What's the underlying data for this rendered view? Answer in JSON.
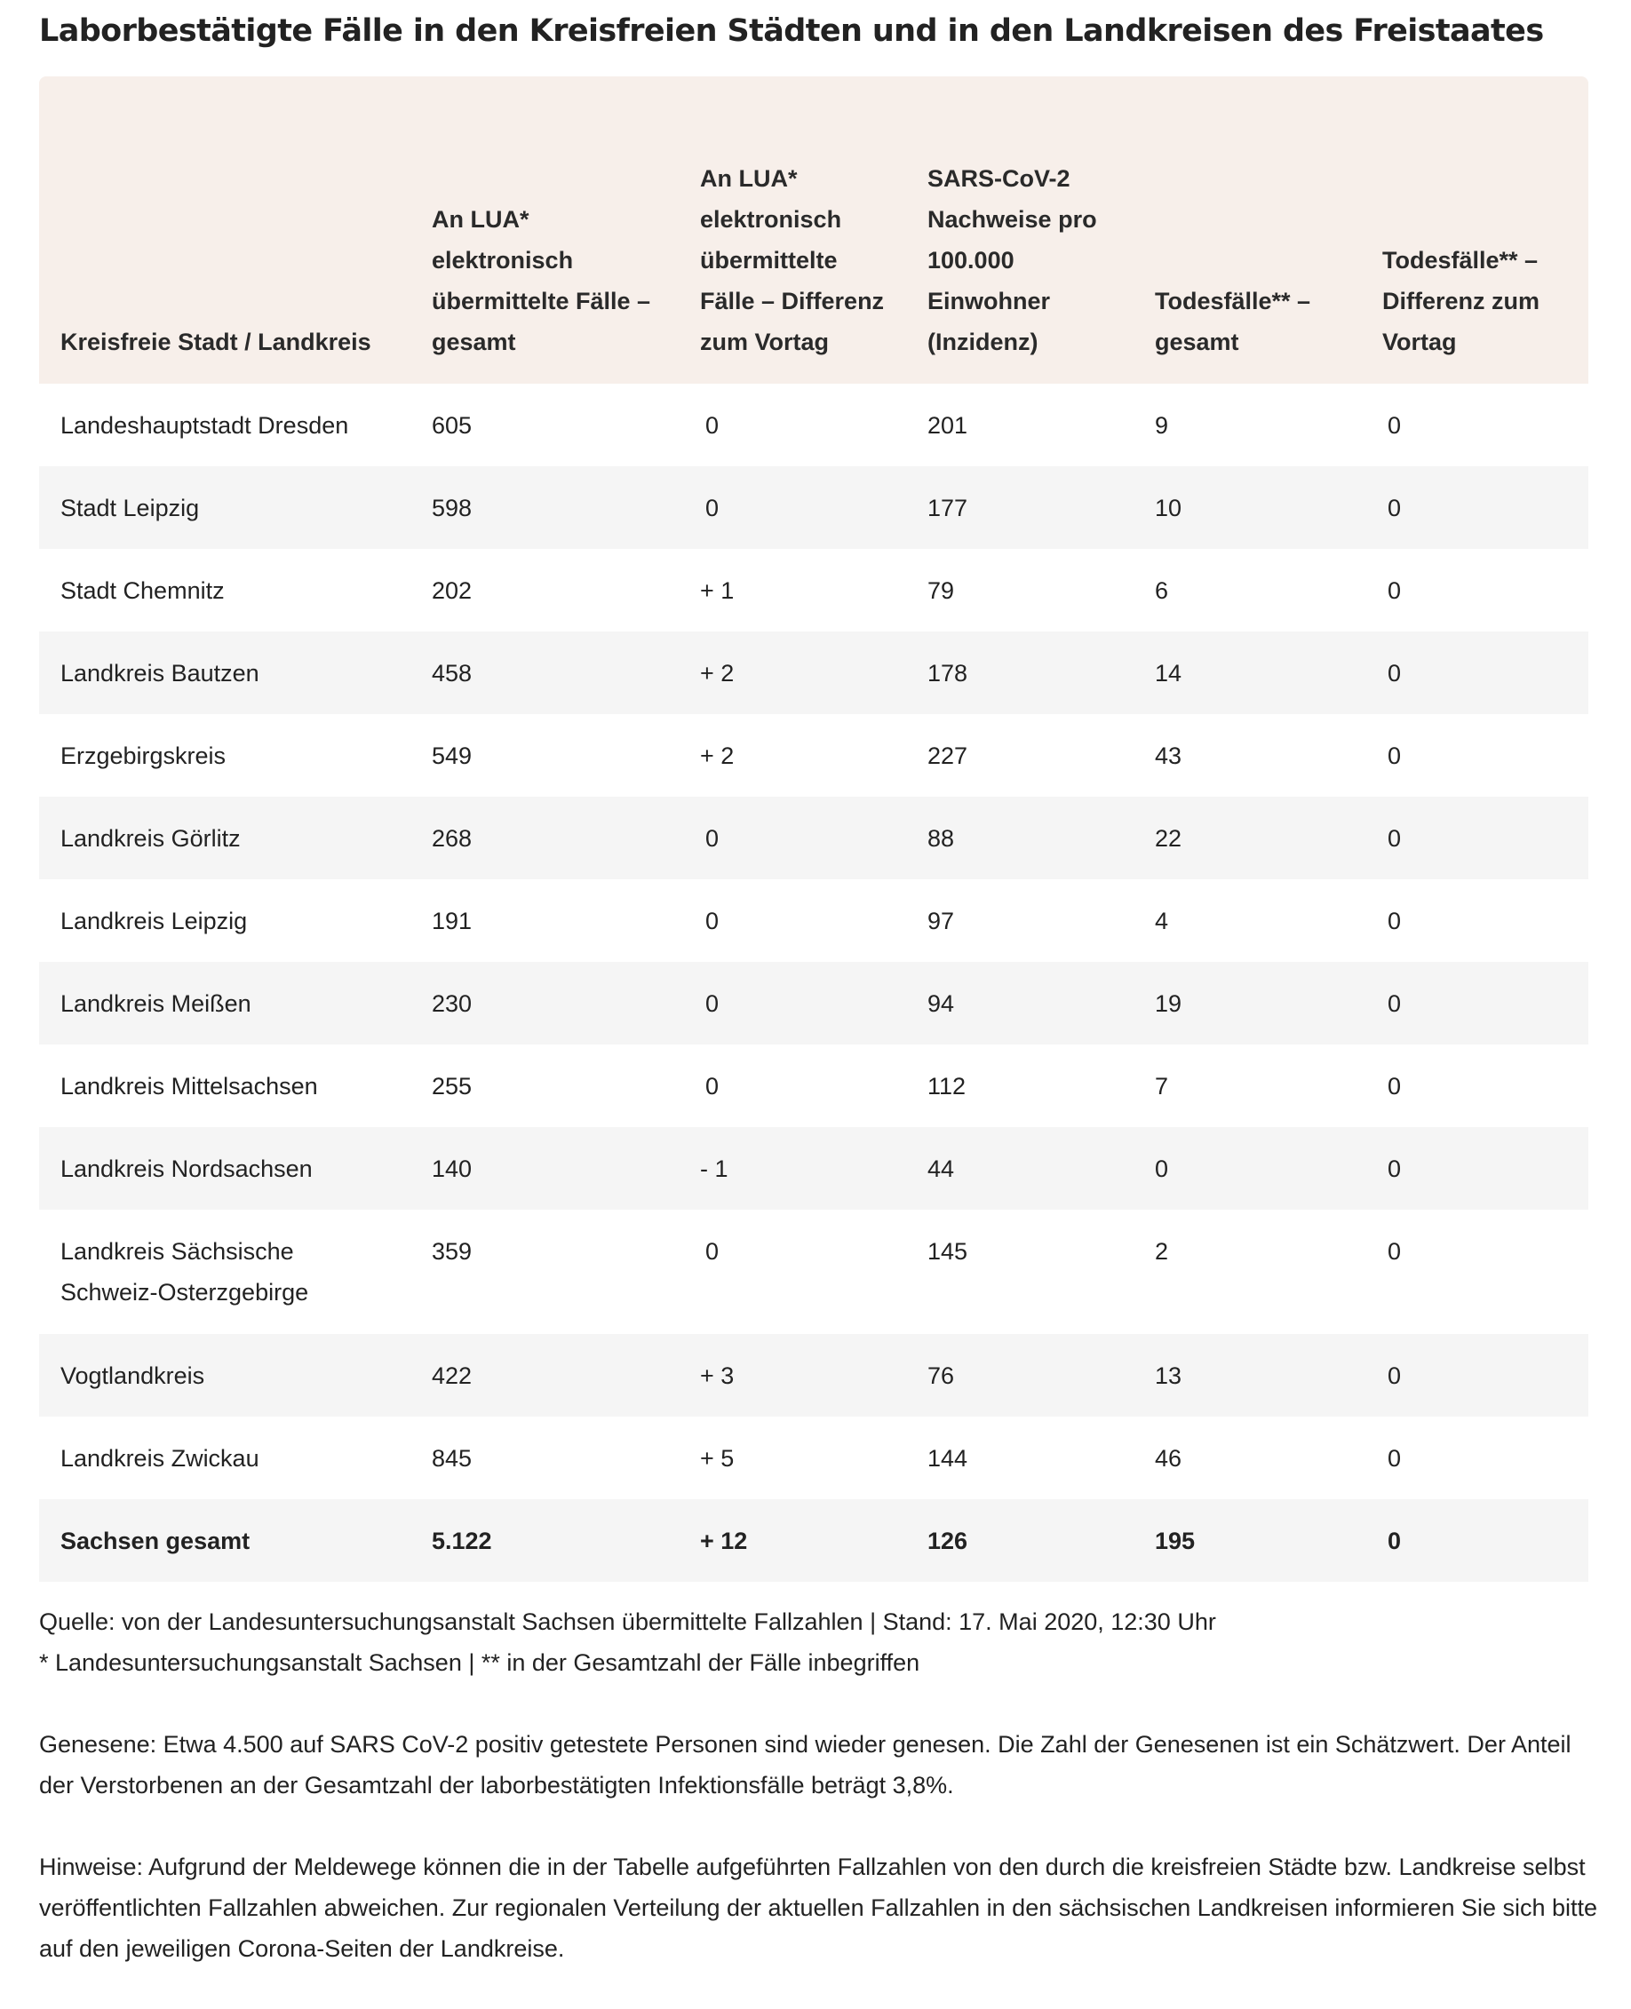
{
  "title": "Laborbestätigte Fälle in den Kreisfreien Städten und in den Landkreisen des Freistaates",
  "table": {
    "headers": [
      "Kreisfreie Stadt / Landkreis",
      "An LUA* elektronisch übermittelte Fälle – gesamt",
      "An LUA* elektronisch übermittelte Fälle – Differenz zum Vortag",
      "SARS-CoV-2 Nachweise pro 100.000 Einwohner (Inzidenz)",
      "Todesfälle** – gesamt",
      "Todesfälle** – Differenz zum Vortag"
    ],
    "rows": [
      [
        "Landeshauptstadt Dresden",
        "605",
        "0",
        "201",
        "9",
        "0"
      ],
      [
        "Stadt Leipzig",
        "598",
        "0",
        "177",
        "10",
        "0"
      ],
      [
        "Stadt Chemnitz",
        "202",
        "+ 1",
        "79",
        "6",
        "0"
      ],
      [
        "Landkreis Bautzen",
        "458",
        "+ 2",
        "178",
        "14",
        "0"
      ],
      [
        "Erzgebirgskreis",
        "549",
        "+ 2",
        "227",
        "43",
        "0"
      ],
      [
        "Landkreis Görlitz",
        "268",
        "0",
        "88",
        "22",
        "0"
      ],
      [
        "Landkreis Leipzig",
        "191",
        "0",
        "97",
        "4",
        "0"
      ],
      [
        "Landkreis Meißen",
        "230",
        "0",
        "94",
        "19",
        "0"
      ],
      [
        "Landkreis Mittelsachsen",
        "255",
        "0",
        "112",
        "7",
        "0"
      ],
      [
        "Landkreis Nordsachsen",
        "140",
        "- 1",
        "44",
        "0",
        "0"
      ],
      [
        "Landkreis Sächsische Schweiz-Osterzgebirge",
        "359",
        "0",
        "145",
        "2",
        "0"
      ],
      [
        "Vogtlandkreis",
        "422",
        "+ 3",
        "76",
        "13",
        "0"
      ],
      [
        "Landkreis Zwickau",
        "845",
        "+ 5",
        "144",
        "46",
        "0"
      ],
      [
        "Sachsen gesamt",
        "5.122",
        "+ 12",
        "126",
        "195",
        "0"
      ]
    ]
  },
  "notes": {
    "source": "Quelle: von der Landesuntersuchungsanstalt Sachsen übermittelte Fallzahlen | Stand: 17. Mai 2020, 12:30 Uhr",
    "footnote": "* Landesuntersuchungsanstalt Sachsen | **  in der Gesamtzahl der Fälle inbegriffen",
    "recovered": "Genesene: Etwa 4.500 auf SARS CoV-2 positiv getestete Personen sind wieder genesen. Die Zahl der Genesenen ist ein Schätzwert. Der Anteil der Verstorbenen an der Gesamtzahl der laborbestätigten Infektionsfälle beträgt 3,8%.",
    "hints": "Hinweise: Aufgrund der Meldewege können die in der Tabelle aufgeführten Fallzahlen von den durch die kreisfreien Städte bzw. Landkreise selbst veröffentlichten Fallzahlen abweichen. Zur regionalen Verteilung der aktuellen Fallzahlen in den sächsischen Landkreisen informieren Sie sich bitte auf den jeweiligen Corona-Seiten der Landkreise."
  }
}
